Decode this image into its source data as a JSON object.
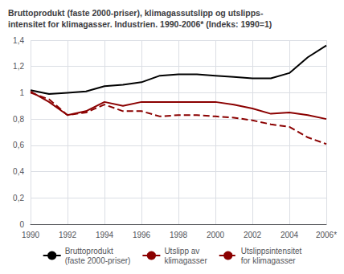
{
  "chart_data": {
    "type": "line",
    "title": "Bruttoprodukt (faste 2000-priser), klimagassutslipp og utslipps-\nintensitet for klimagasser. Industrien. 1990-2006* (Indeks: 1990=1)",
    "x": [
      1990,
      1991,
      1992,
      1993,
      1994,
      1995,
      1996,
      1997,
      1998,
      1999,
      2000,
      2001,
      2002,
      2003,
      2004,
      2005,
      2006
    ],
    "series": [
      {
        "name": "Bruttoprodukt\n(faste 2000-priser)",
        "color": "#000000",
        "line_style": "solid",
        "values": [
          1.02,
          0.99,
          1.0,
          1.01,
          1.05,
          1.06,
          1.08,
          1.13,
          1.14,
          1.14,
          1.13,
          1.12,
          1.11,
          1.11,
          1.15,
          1.27,
          1.36
        ]
      },
      {
        "name": "Utslipp av\nklimagasser",
        "color": "#8B0000",
        "line_style": "solid",
        "values": [
          1.01,
          0.93,
          0.83,
          0.86,
          0.93,
          0.9,
          0.93,
          0.93,
          0.93,
          0.93,
          0.93,
          0.91,
          0.88,
          0.84,
          0.85,
          0.83,
          0.8
        ]
      },
      {
        "name": "Utslippsintensitet\nfor klimagasser",
        "color": "#8B0000",
        "line_style": "dashed",
        "values": [
          1.0,
          0.95,
          0.83,
          0.85,
          0.91,
          0.86,
          0.86,
          0.82,
          0.83,
          0.83,
          0.82,
          0.81,
          0.79,
          0.76,
          0.74,
          0.66,
          0.61
        ]
      }
    ],
    "xlim": [
      1990,
      2006
    ],
    "xticks": [
      1990,
      1992,
      1994,
      1996,
      1998,
      2000,
      2002,
      2004,
      {
        "value": 2006,
        "label": "2006*"
      }
    ],
    "ylim": [
      0,
      1.4
    ],
    "yticks": [
      0,
      {
        "value": 0.2,
        "label": "0,2"
      },
      {
        "value": 0.4,
        "label": "0,4"
      },
      {
        "value": 0.6,
        "label": "0,6"
      },
      {
        "value": 0.8,
        "label": "0,8"
      },
      1,
      {
        "value": 1.2,
        "label": "1,2"
      },
      {
        "value": 1.4,
        "label": "1,4"
      }
    ],
    "grid": true,
    "legend": "bottom"
  }
}
